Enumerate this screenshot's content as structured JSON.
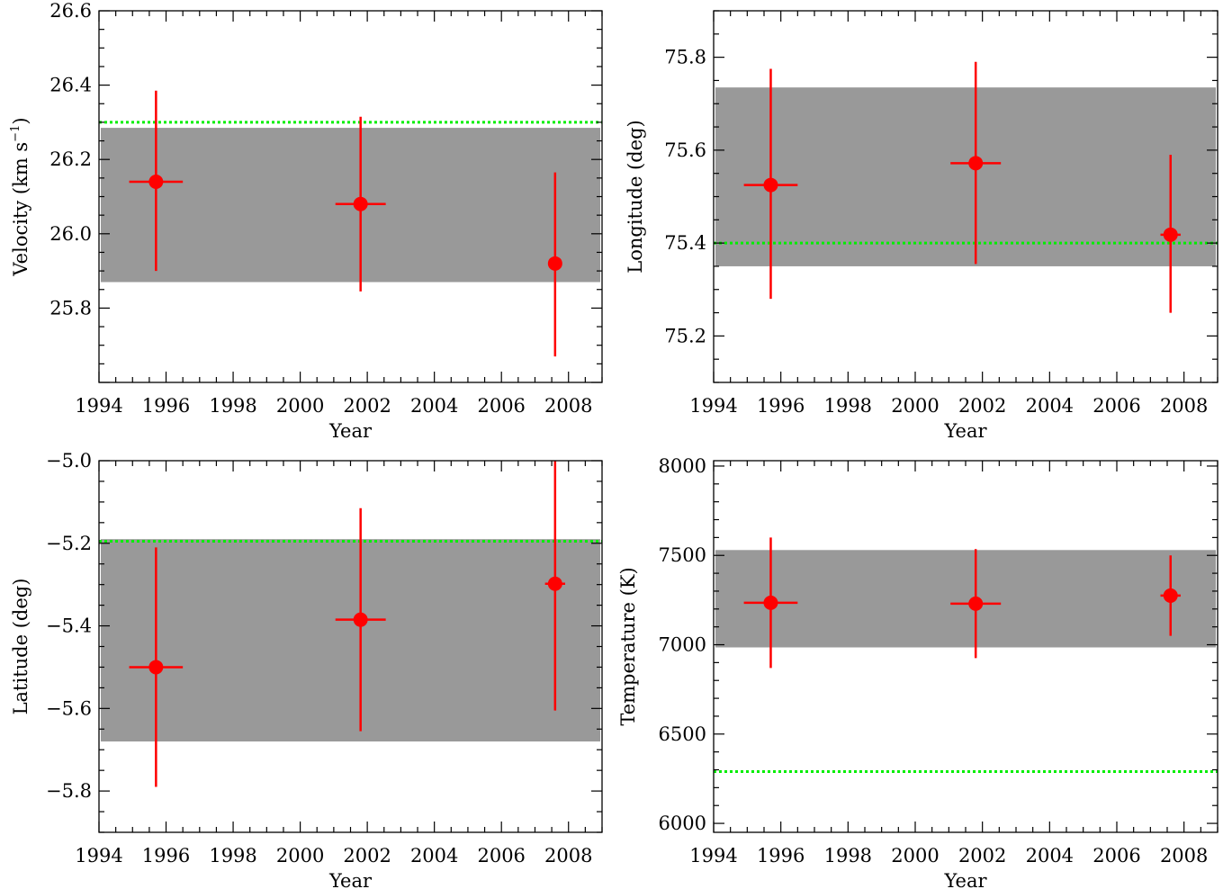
{
  "chart_data": [
    {
      "type": "scatter",
      "xlabel": "Year",
      "ylabel": "Velocity (km s",
      "ylabel_sup": "−1",
      "ylabel_tail": ")",
      "xlim": [
        1994,
        2009
      ],
      "ylim": [
        25.6,
        26.6
      ],
      "xticks": [
        1994,
        1996,
        1998,
        2000,
        2002,
        2004,
        2006,
        2008
      ],
      "xtick_labels": [
        "1994",
        "1996",
        "1998",
        "2000",
        "2002",
        "2004",
        "2006",
        "2008"
      ],
      "yticks": [
        25.8,
        26.0,
        26.2,
        26.4,
        26.6
      ],
      "ytick_labels": [
        "25.8",
        "26.0",
        "26.2",
        "26.4",
        "26.6"
      ],
      "band": [
        25.87,
        26.285
      ],
      "reference_line": 26.3,
      "points": [
        {
          "x": 1995.7,
          "y": 26.14,
          "x_err": 0.8,
          "y_low": 25.9,
          "y_high": 26.385
        },
        {
          "x": 2001.8,
          "y": 26.08,
          "x_err": 0.75,
          "y_low": 25.845,
          "y_high": 26.315
        },
        {
          "x": 2007.6,
          "y": 25.92,
          "x_err": 0.0,
          "y_low": 25.67,
          "y_high": 26.165
        }
      ],
      "colors": {
        "points": "#ff0000",
        "band": "#999999",
        "reference": "#00ee00"
      }
    },
    {
      "type": "scatter",
      "xlabel": "Year",
      "ylabel": "Longitude (deg)",
      "xlim": [
        1994,
        2009
      ],
      "ylim": [
        75.1,
        75.9
      ],
      "xticks": [
        1994,
        1996,
        1998,
        2000,
        2002,
        2004,
        2006,
        2008
      ],
      "xtick_labels": [
        "1994",
        "1996",
        "1998",
        "2000",
        "2002",
        "2004",
        "2006",
        "2008"
      ],
      "yticks": [
        75.2,
        75.4,
        75.6,
        75.8
      ],
      "ytick_labels": [
        "75.2",
        "75.4",
        "75.6",
        "75.8"
      ],
      "band": [
        75.35,
        75.735
      ],
      "reference_line": 75.4,
      "points": [
        {
          "x": 1995.7,
          "y": 75.525,
          "x_err": 0.8,
          "y_low": 75.28,
          "y_high": 75.775
        },
        {
          "x": 2001.8,
          "y": 75.572,
          "x_err": 0.75,
          "y_low": 75.355,
          "y_high": 75.79
        },
        {
          "x": 2007.6,
          "y": 75.418,
          "x_err": 0.3,
          "y_low": 75.25,
          "y_high": 75.59
        }
      ],
      "colors": {
        "points": "#ff0000",
        "band": "#999999",
        "reference": "#00ee00"
      }
    },
    {
      "type": "scatter",
      "xlabel": "Year",
      "ylabel": "Latitude (deg)",
      "xlim": [
        1994,
        2009
      ],
      "ylim": [
        -5.9,
        -5.0
      ],
      "xticks": [
        1994,
        1996,
        1998,
        2000,
        2002,
        2004,
        2006,
        2008
      ],
      "xtick_labels": [
        "1994",
        "1996",
        "1998",
        "2000",
        "2002",
        "2004",
        "2006",
        "2008"
      ],
      "yticks": [
        -5.8,
        -5.6,
        -5.4,
        -5.2,
        -5.0
      ],
      "ytick_labels": [
        "−5.8",
        "−5.6",
        "−5.4",
        "−5.2",
        "−5.0"
      ],
      "band": [
        -5.68,
        -5.19
      ],
      "reference_line": -5.195,
      "points": [
        {
          "x": 1995.7,
          "y": -5.5,
          "x_err": 0.8,
          "y_low": -5.79,
          "y_high": -5.21
        },
        {
          "x": 2001.8,
          "y": -5.385,
          "x_err": 0.75,
          "y_low": -5.655,
          "y_high": -5.115
        },
        {
          "x": 2007.6,
          "y": -5.298,
          "x_err": 0.3,
          "y_low": -5.605,
          "y_high": -4.99
        }
      ],
      "colors": {
        "points": "#ff0000",
        "band": "#999999",
        "reference": "#00ee00"
      }
    },
    {
      "type": "scatter",
      "xlabel": "Year",
      "ylabel": "Temperature (K)",
      "xlim": [
        1994,
        2009
      ],
      "ylim": [
        5950,
        8030
      ],
      "xticks": [
        1994,
        1996,
        1998,
        2000,
        2002,
        2004,
        2006,
        2008
      ],
      "xtick_labels": [
        "1994",
        "1996",
        "1998",
        "2000",
        "2002",
        "2004",
        "2006",
        "2008"
      ],
      "yticks": [
        6000,
        6500,
        7000,
        7500,
        8000
      ],
      "ytick_labels": [
        "6000",
        "6500",
        "7000",
        "7500",
        "8000"
      ],
      "band": [
        6985,
        7530
      ],
      "reference_line": 6290,
      "points": [
        {
          "x": 1995.7,
          "y": 7235,
          "x_err": 0.8,
          "y_low": 6870,
          "y_high": 7600
        },
        {
          "x": 2001.8,
          "y": 7230,
          "x_err": 0.75,
          "y_low": 6925,
          "y_high": 7535
        },
        {
          "x": 2007.6,
          "y": 7275,
          "x_err": 0.3,
          "y_low": 7050,
          "y_high": 7500
        }
      ],
      "colors": {
        "points": "#ff0000",
        "band": "#999999",
        "reference": "#00ee00"
      }
    }
  ]
}
